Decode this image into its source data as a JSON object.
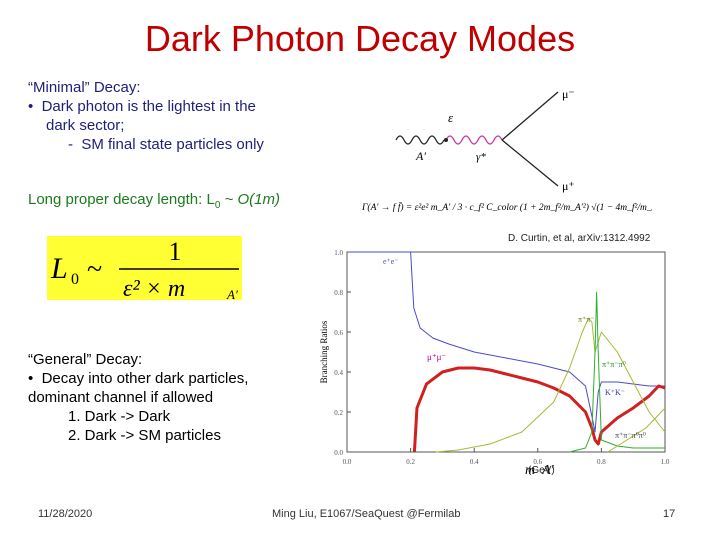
{
  "title": "Dark Photon Decay Modes",
  "minimal": {
    "heading": "“Minimal” Decay:",
    "bullet": "Dark photon is the lightest in the",
    "bullet_cont": "dark sector;",
    "sub": "SM final state particles only"
  },
  "decay_length": {
    "prefix": "Long proper decay length: L",
    "subscript": "0",
    "suffix": " ~ O(1m)"
  },
  "formula": {
    "lhs": "L",
    "lhs_sub": "0",
    "sim": "~",
    "numerator": "1",
    "denominator": "ε² × m",
    "denominator_sub": "A′"
  },
  "general": {
    "heading": "“General” Decay:",
    "bullet": "Decay into other dark particles,",
    "line2": "dominant channel if allowed",
    "items": [
      "1. Dark -> Dark",
      "2. Dark -> SM particles"
    ]
  },
  "feynman": {
    "mu_minus": "μ⁻",
    "mu_plus": "μ⁺",
    "epsilon": "ε",
    "gamma": "γ*",
    "aprime": "A′",
    "width_formula": "Γ(A′ → f f̄) = ε²e² m_A′ / 3 · c_f² C_color (1 + 2m_f²/m_A′²) √(1 − 4m_f²/m_A′²)"
  },
  "citation": "D. Curtin, et al, arXiv:1312.4992",
  "gev_label": "(GeV)",
  "footer": {
    "date": "11/28/2020",
    "center": "Ming Liu, E1067/SeaQuest @Fermilab",
    "page": "17"
  },
  "chart_data": {
    "type": "line",
    "ylabel": "Branching Ratios",
    "xlabel": "m_A′",
    "xlim": [
      0.0,
      1.0
    ],
    "ylim": [
      0.0,
      1.0
    ],
    "xticks": [
      "0.0",
      "0.2",
      "0.4",
      "0.6",
      "0.8",
      "1.0"
    ],
    "yticks": [
      "0.0",
      "0.2",
      "0.4",
      "0.6",
      "0.8",
      "1.0"
    ],
    "annotations": [
      "e⁺e⁻",
      "μ⁺μ⁻",
      "π⁺π⁻",
      "π⁺π⁻π⁰",
      "K⁺K⁻",
      "π⁺π⁻π⁰π⁰"
    ],
    "series": [
      {
        "color": "#4a4acc",
        "x": [
          0.001,
          0.2,
          0.21,
          0.23,
          0.27,
          0.32,
          0.4,
          0.5,
          0.6,
          0.7,
          0.75,
          0.77,
          0.78,
          0.79,
          0.8,
          0.85,
          0.9,
          0.95,
          1.0
        ],
        "y": [
          1.0,
          1.0,
          0.72,
          0.62,
          0.57,
          0.54,
          0.5,
          0.47,
          0.44,
          0.4,
          0.33,
          0.18,
          0.1,
          0.3,
          0.35,
          0.35,
          0.34,
          0.33,
          0.33
        ]
      },
      {
        "color": "#d02020",
        "x": [
          0.212,
          0.22,
          0.25,
          0.3,
          0.35,
          0.4,
          0.45,
          0.5,
          0.55,
          0.6,
          0.65,
          0.7,
          0.75,
          0.77,
          0.78,
          0.79,
          0.8,
          0.85,
          0.9,
          0.95,
          0.98,
          1.0
        ],
        "y": [
          0.0,
          0.22,
          0.34,
          0.4,
          0.42,
          0.42,
          0.41,
          0.39,
          0.37,
          0.35,
          0.32,
          0.28,
          0.2,
          0.12,
          0.06,
          0.04,
          0.1,
          0.17,
          0.22,
          0.28,
          0.33,
          0.32
        ]
      },
      {
        "color": "#a8b838",
        "x": [
          0.28,
          0.35,
          0.45,
          0.55,
          0.65,
          0.7,
          0.74,
          0.76,
          0.77,
          0.78,
          0.8,
          0.85,
          0.9,
          0.95,
          1.0
        ],
        "y": [
          0.0,
          0.01,
          0.04,
          0.1,
          0.25,
          0.42,
          0.6,
          0.67,
          0.65,
          0.5,
          0.6,
          0.5,
          0.35,
          0.2,
          0.1
        ]
      },
      {
        "color": "#2eae2e",
        "x": [
          0.7,
          0.75,
          0.77,
          0.78,
          0.785,
          0.79,
          0.8,
          0.85,
          0.9,
          1.0
        ],
        "y": [
          0.0,
          0.02,
          0.1,
          0.5,
          0.8,
          0.5,
          0.06,
          0.03,
          0.02,
          0.02
        ]
      },
      {
        "color": "#a8b838",
        "x": [
          0.82,
          0.88,
          0.94,
          1.0
        ],
        "y": [
          0.0,
          0.06,
          0.12,
          0.22
        ]
      }
    ]
  }
}
